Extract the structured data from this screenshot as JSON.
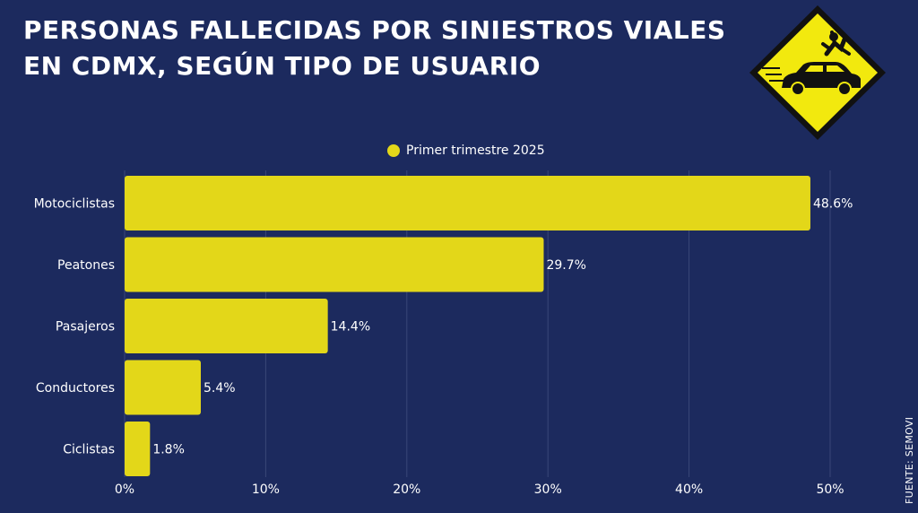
{
  "title": {
    "line1": "PERSONAS FALLECIDAS POR SINIESTROS VIALES",
    "line2": "EN CDMX, SEGÚN TIPO DE USUARIO"
  },
  "source": "FUENTE: SEMOVI",
  "icon": "car-hits-pedestrian-warning-sign-icon",
  "colors": {
    "background": "#1c2a5e",
    "bar": "#e3d719",
    "sign": "#f2e90e"
  },
  "chart_data": {
    "type": "bar",
    "orientation": "horizontal",
    "categories": [
      "Motociclistas",
      "Peatones",
      "Pasajeros",
      "Conductores",
      "Ciclistas"
    ],
    "series": [
      {
        "name": "Primer trimestre 2025",
        "values": [
          48.6,
          29.7,
          14.4,
          5.4,
          1.8
        ],
        "labels": [
          "48.6%",
          "29.7%",
          "14.4%",
          "5.4%",
          "1.8%"
        ]
      }
    ],
    "xlim": [
      0,
      50
    ],
    "xticks": [
      0,
      10,
      20,
      30,
      40,
      50
    ],
    "xtick_labels": [
      "0%",
      "10%",
      "20%",
      "30%",
      "40%",
      "50%"
    ],
    "legend_position": "top-center",
    "grid": "vertical"
  }
}
